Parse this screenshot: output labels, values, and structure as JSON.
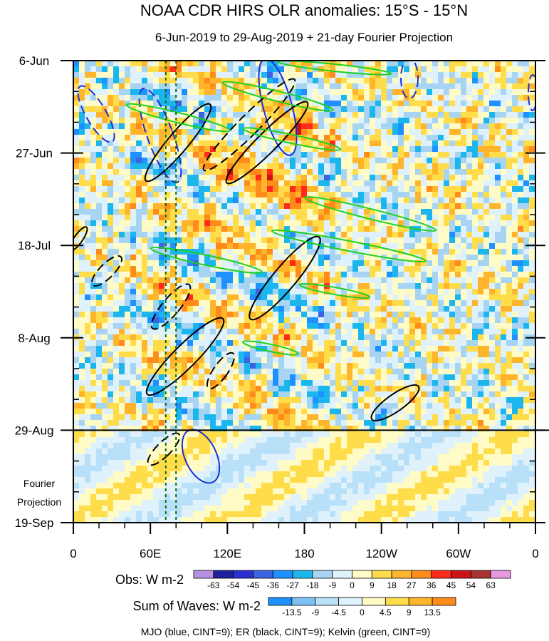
{
  "chart_data": {
    "type": "heatmap",
    "title": "NOAA CDR HIRS OLR anomalies: 15°S - 15°N",
    "subtitle": "6-Jun-2019 to 29-Aug-2019 + 21-day Fourier Projection",
    "y_tick_labels": [
      "6-Jun",
      "27-Jun",
      "18-Jul",
      "8-Aug",
      "29-Aug",
      "19-Sep"
    ],
    "y_ticks": [
      "2019-06-06",
      "2019-06-27",
      "2019-07-18",
      "2019-08-08",
      "2019-08-29",
      "2019-09-19"
    ],
    "ylim": [
      "2019-06-06",
      "2019-09-19"
    ],
    "y_reversed": true,
    "x_tick_labels": [
      "0",
      "60E",
      "120E",
      "180",
      "120W",
      "60W",
      "0"
    ],
    "x_ticks_deg": [
      0,
      60,
      120,
      180,
      240,
      300,
      360
    ],
    "xlim": [
      0,
      360
    ],
    "projection_label": "Fourier\nProjection",
    "projection_start": "2019-08-29",
    "reference_longitudes": [
      72,
      80
    ],
    "obs_colorbar": {
      "label": "Obs: W m-2",
      "levels": [
        -63,
        -54,
        -45,
        -36,
        -27,
        -18,
        -9,
        0,
        9,
        18,
        27,
        36,
        45,
        54,
        63
      ],
      "colors": [
        "#b68fe0",
        "#1f1f9e",
        "#2b2fd1",
        "#3c63e0",
        "#1e90ff",
        "#1cb6ee",
        "#a6d4f2",
        "#dff1fb",
        "#fffbc6",
        "#ffdc4a",
        "#ffb52b",
        "#ff8c1a",
        "#ff2a1a",
        "#cc1418",
        "#a83232",
        "#e79ae0"
      ]
    },
    "waves_colorbar": {
      "label": "Sum of Waves: W m-2",
      "levels": [
        -13.5,
        -9,
        -4.5,
        0,
        4.5,
        9,
        13.5
      ],
      "colors": [
        "#1e90ff",
        "#7cc2f5",
        "#b9e0f9",
        "#dff1fb",
        "#fffbc6",
        "#ffdc4a",
        "#ffb52b",
        "#ff8c1a"
      ]
    },
    "contours_legend": "MJO (blue, CINT=9); ER (black, CINT=9); Kelvin (green, CINT=9)",
    "series": [
      {
        "name": "MJO",
        "color": "#1f2fd0",
        "cint": 9
      },
      {
        "name": "ER",
        "color": "#000000",
        "cint": 9
      },
      {
        "name": "Kelvin",
        "color": "#1fd11f",
        "cint": 9
      }
    ]
  }
}
